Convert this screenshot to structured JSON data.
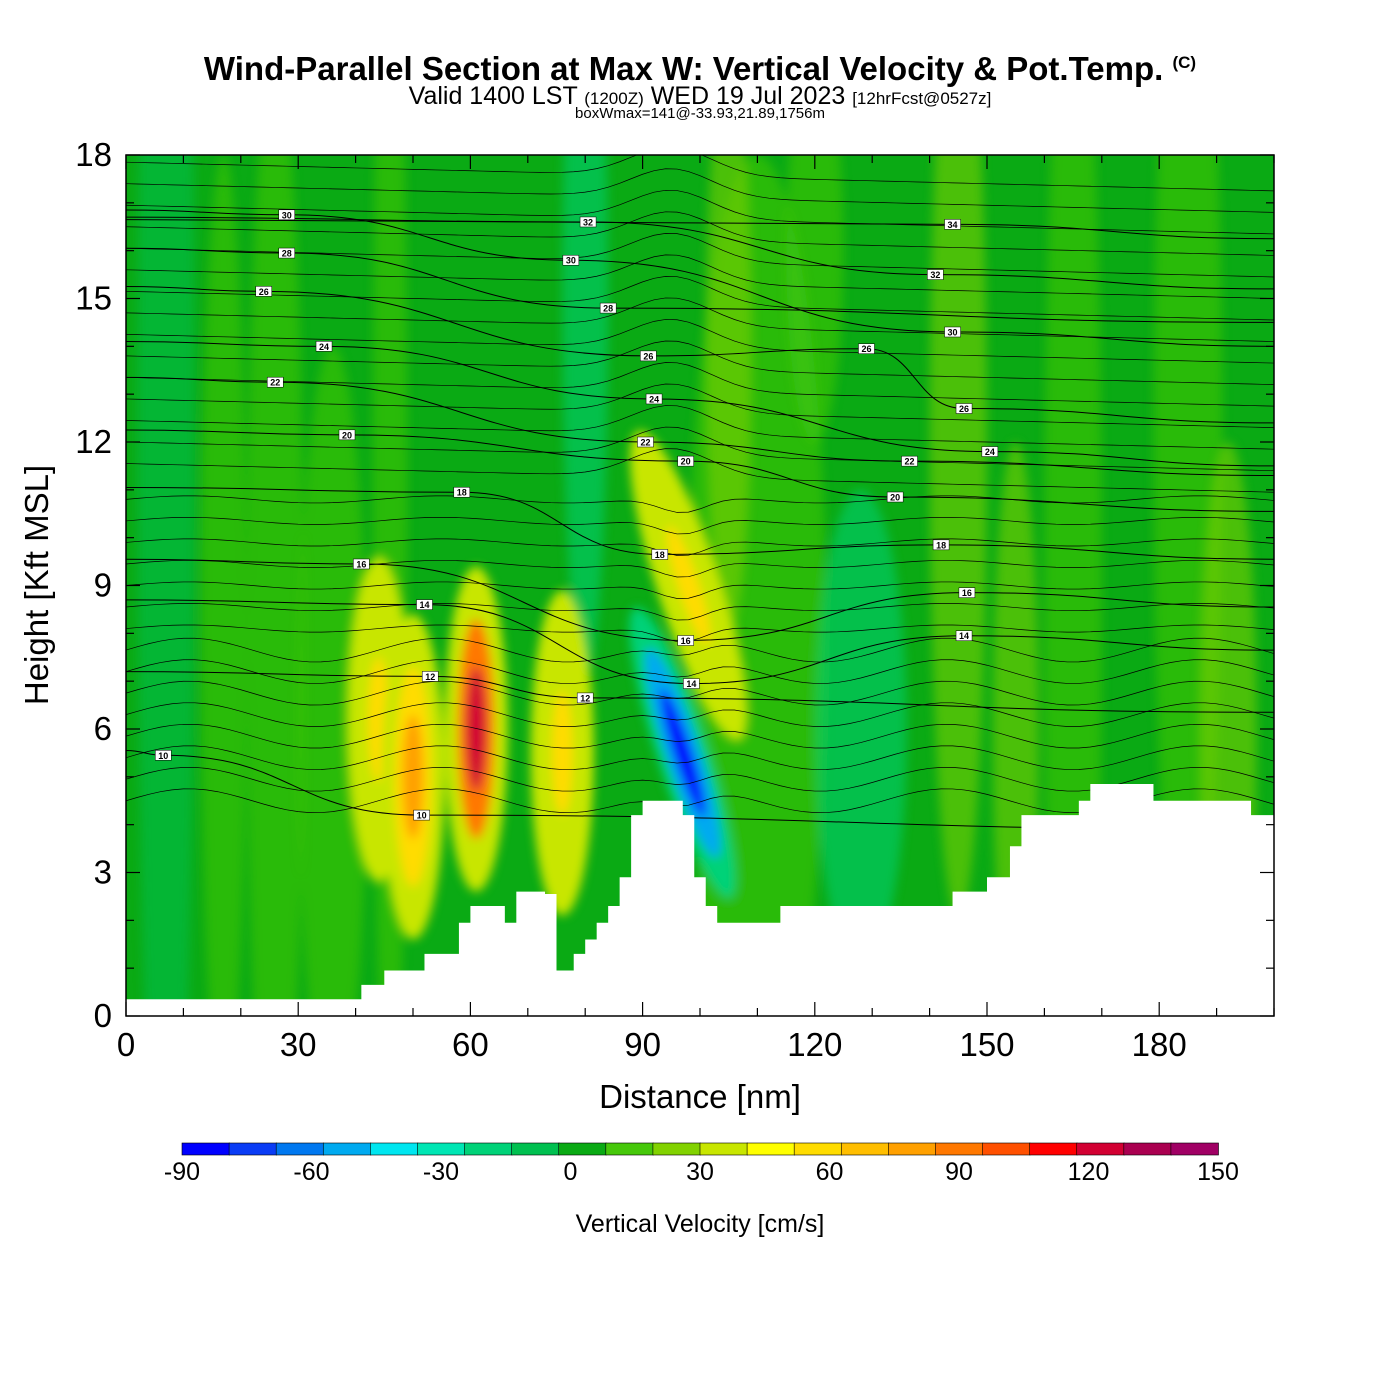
{
  "title": {
    "main": "Wind-Parallel Section at Max W: Vertical Velocity & Pot.Temp.",
    "copyright": "(C)",
    "valid_prefix": "Valid 1400 LST",
    "valid_zulu": "(1200Z)",
    "valid_date": "WED 19 Jul 2023",
    "forecast": "[12hrFcst@0527z]",
    "boxinfo": "boxWmax=141@-33.93,21.89,1756m"
  },
  "chart_data": {
    "type": "heatmap",
    "xlabel": "Distance [nm]",
    "ylabel": "Height [Kft MSL]",
    "xlim": [
      0,
      200
    ],
    "ylim": [
      0,
      18
    ],
    "x_ticks": [
      0,
      30,
      60,
      90,
      120,
      150,
      180
    ],
    "y_ticks": [
      0,
      3,
      6,
      9,
      12,
      15,
      18
    ],
    "colorbar": {
      "title": "Vertical Velocity [cm/s]",
      "min": -90,
      "max": 150,
      "step": 10,
      "tick_labels": [
        "-90",
        "-60",
        "-30",
        "0",
        "30",
        "60",
        "90",
        "120",
        "150"
      ],
      "colors": [
        "#0000ff",
        "#0a3cf5",
        "#0078f0",
        "#00aaf0",
        "#00e6f0",
        "#00e6b4",
        "#00d278",
        "#00c050",
        "#0aaa14",
        "#46c80a",
        "#82d200",
        "#c8e600",
        "#ffff00",
        "#ffdc00",
        "#ffbe00",
        "#ffa000",
        "#ff7800",
        "#ff5000",
        "#ff0000",
        "#d20032",
        "#aa0050",
        "#a00064"
      ]
    },
    "terrain_kft": [
      [
        0,
        0.35
      ],
      [
        41,
        0.35
      ],
      [
        41,
        0.65
      ],
      [
        45,
        0.65
      ],
      [
        45,
        0.95
      ],
      [
        52,
        0.95
      ],
      [
        52,
        1.3
      ],
      [
        58,
        1.3
      ],
      [
        58,
        1.95
      ],
      [
        60,
        1.95
      ],
      [
        60,
        2.3
      ],
      [
        66,
        2.3
      ],
      [
        66,
        1.95
      ],
      [
        68,
        1.95
      ],
      [
        68,
        2.6
      ],
      [
        73,
        2.6
      ],
      [
        73,
        2.55
      ],
      [
        75,
        2.55
      ],
      [
        75,
        0.95
      ],
      [
        78,
        0.95
      ],
      [
        78,
        1.3
      ],
      [
        80,
        1.3
      ],
      [
        80,
        1.6
      ],
      [
        82,
        1.6
      ],
      [
        82,
        1.95
      ],
      [
        84,
        1.95
      ],
      [
        84,
        2.3
      ],
      [
        86,
        2.3
      ],
      [
        86,
        2.9
      ],
      [
        88,
        2.9
      ],
      [
        88,
        4.2
      ],
      [
        90,
        4.2
      ],
      [
        90,
        4.5
      ],
      [
        97,
        4.5
      ],
      [
        97,
        4.2
      ],
      [
        99,
        4.2
      ],
      [
        99,
        2.9
      ],
      [
        101,
        2.9
      ],
      [
        101,
        2.3
      ],
      [
        103,
        2.3
      ],
      [
        103,
        1.95
      ],
      [
        114,
        1.95
      ],
      [
        114,
        2.3
      ],
      [
        144,
        2.3
      ],
      [
        144,
        2.6
      ],
      [
        150,
        2.6
      ],
      [
        150,
        2.9
      ],
      [
        154,
        2.9
      ],
      [
        154,
        3.55
      ],
      [
        156,
        3.55
      ],
      [
        156,
        4.2
      ],
      [
        166,
        4.2
      ],
      [
        166,
        4.5
      ],
      [
        168,
        4.5
      ],
      [
        168,
        4.85
      ],
      [
        179,
        4.85
      ],
      [
        179,
        4.5
      ],
      [
        196,
        4.5
      ],
      [
        196,
        4.2
      ],
      [
        200,
        4.2
      ]
    ],
    "updraft_cores": [
      {
        "x": 44,
        "y": 6.2,
        "value": 40
      },
      {
        "x": 50,
        "y": 5.0,
        "value": 60
      },
      {
        "x": 61,
        "y": 6.0,
        "value": 100
      },
      {
        "x": 76,
        "y": 5.5,
        "value": 40
      },
      {
        "x": 98,
        "y": 9.0,
        "value": 40
      },
      {
        "x": 97,
        "y": 5.5,
        "value": -90
      }
    ],
    "theta_contours": [
      {
        "label": "10",
        "x": 6.5,
        "y": 5.45
      },
      {
        "label": "10",
        "x": 51.5,
        "y": 4.2
      },
      {
        "label": "12",
        "x": 53,
        "y": 7.1
      },
      {
        "label": "12",
        "x": 80,
        "y": 6.65
      },
      {
        "label": "14",
        "x": 52,
        "y": 8.6
      },
      {
        "label": "14",
        "x": 98.5,
        "y": 6.95
      },
      {
        "label": "14",
        "x": 146,
        "y": 7.95
      },
      {
        "label": "16",
        "x": 41,
        "y": 9.45
      },
      {
        "label": "16",
        "x": 97.5,
        "y": 7.85
      },
      {
        "label": "16",
        "x": 146.5,
        "y": 8.85
      },
      {
        "label": "18",
        "x": 58.5,
        "y": 10.95
      },
      {
        "label": "18",
        "x": 93,
        "y": 9.65
      },
      {
        "label": "18",
        "x": 142,
        "y": 9.85
      },
      {
        "label": "20",
        "x": 38.5,
        "y": 12.15
      },
      {
        "label": "20",
        "x": 97.5,
        "y": 11.6
      },
      {
        "label": "20",
        "x": 134,
        "y": 10.85
      },
      {
        "label": "22",
        "x": 26,
        "y": 13.25
      },
      {
        "label": "22",
        "x": 90.5,
        "y": 12.0
      },
      {
        "label": "22",
        "x": 136.5,
        "y": 11.6
      },
      {
        "label": "24",
        "x": 34.5,
        "y": 14.0
      },
      {
        "label": "24",
        "x": 92,
        "y": 12.9
      },
      {
        "label": "24",
        "x": 150.5,
        "y": 11.8
      },
      {
        "label": "26",
        "x": 24,
        "y": 15.15
      },
      {
        "label": "26",
        "x": 91,
        "y": 13.8
      },
      {
        "label": "26",
        "x": 129,
        "y": 13.95
      },
      {
        "label": "26",
        "x": 146,
        "y": 12.7
      },
      {
        "label": "28",
        "x": 28,
        "y": 15.95
      },
      {
        "label": "28",
        "x": 84,
        "y": 14.8
      },
      {
        "label": "30",
        "x": 28,
        "y": 16.75
      },
      {
        "label": "30",
        "x": 77.5,
        "y": 15.8
      },
      {
        "label": "30",
        "x": 144,
        "y": 14.3
      },
      {
        "label": "32",
        "x": 80.5,
        "y": 16.6
      },
      {
        "label": "32",
        "x": 141,
        "y": 15.5
      },
      {
        "label": "34",
        "x": 144,
        "y": 16.55
      }
    ]
  }
}
